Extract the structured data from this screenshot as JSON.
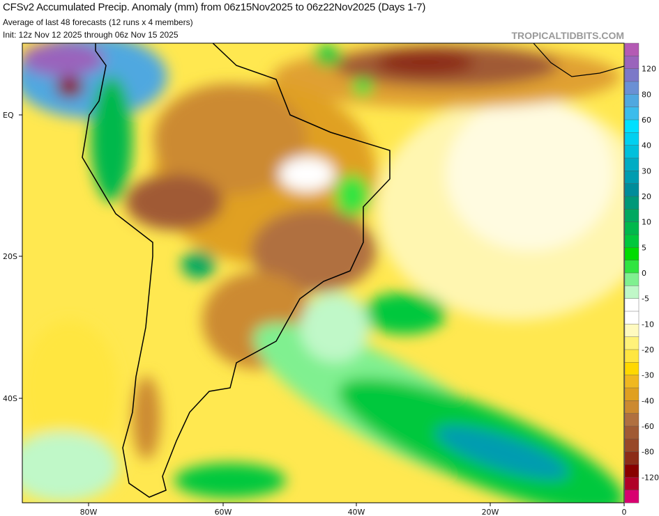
{
  "header": {
    "title": "CFSv2 Accumulated Precip. Anomaly (mm) from 06z15Nov2025 to 06z22Nov2025 (Days 1-7)",
    "subtitle": "Average of last 48 forecasts (12 runs x 4 members)",
    "init": "Init: 12z Nov 12 2025 through 06z Nov 15 2025",
    "watermark": "TROPICALTIDBITS.COM"
  },
  "map": {
    "region": "South America",
    "lon_labels": [
      "80W",
      "60W",
      "40W",
      "20W",
      "0"
    ],
    "lat_labels": [
      "EQ",
      "20S",
      "40S"
    ]
  },
  "colorbar": {
    "unit": "mm",
    "labels": [
      "120",
      "80",
      "60",
      "40",
      "30",
      "20",
      "10",
      "5",
      "0",
      "-5",
      "-10",
      "-20",
      "-30",
      "-40",
      "-60",
      "-80",
      "-120"
    ],
    "colors": [
      "#b45ab4",
      "#9a64bc",
      "#7c78c8",
      "#6a90d4",
      "#50a8e0",
      "#3cbcec",
      "#00e0ff",
      "#00d0f0",
      "#00c0dc",
      "#00acc4",
      "#009cb0",
      "#008c9a",
      "#009878",
      "#00a860",
      "#00b84c",
      "#00c83c",
      "#00dc00",
      "#30e440",
      "#80f090",
      "#c0f8c8",
      "#ffffff",
      "#ffffff",
      "#fffac0",
      "#fff27a",
      "#ffe640",
      "#ffd800",
      "#f0b820",
      "#e0a020",
      "#cc8a30",
      "#b07040",
      "#a05a34",
      "#984828",
      "#8c2c18",
      "#880000",
      "#b00028",
      "#d80070"
    ]
  }
}
